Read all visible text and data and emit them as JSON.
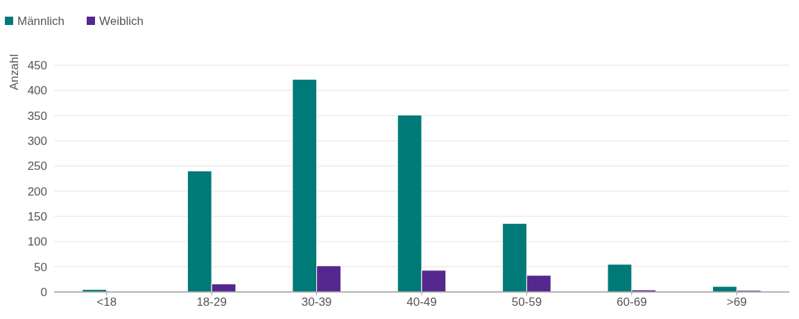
{
  "chart_data": {
    "type": "bar",
    "ylabel": "Anzahl",
    "categories": [
      "<18",
      "18-29",
      "30-39",
      "40-49",
      "50-59",
      "60-69",
      ">69"
    ],
    "series": [
      {
        "name": "Männlich",
        "color": "#007a78",
        "values": [
          5,
          240,
          422,
          351,
          136,
          55,
          11
        ]
      },
      {
        "name": "Weiblich",
        "color": "#55288f",
        "values": [
          0,
          16,
          52,
          43,
          33,
          4,
          3
        ]
      }
    ],
    "ylim": [
      0,
      450
    ],
    "yticks": [
      0,
      50,
      100,
      150,
      200,
      250,
      300,
      350,
      400,
      450
    ],
    "grid": "y",
    "legend": "top left"
  }
}
